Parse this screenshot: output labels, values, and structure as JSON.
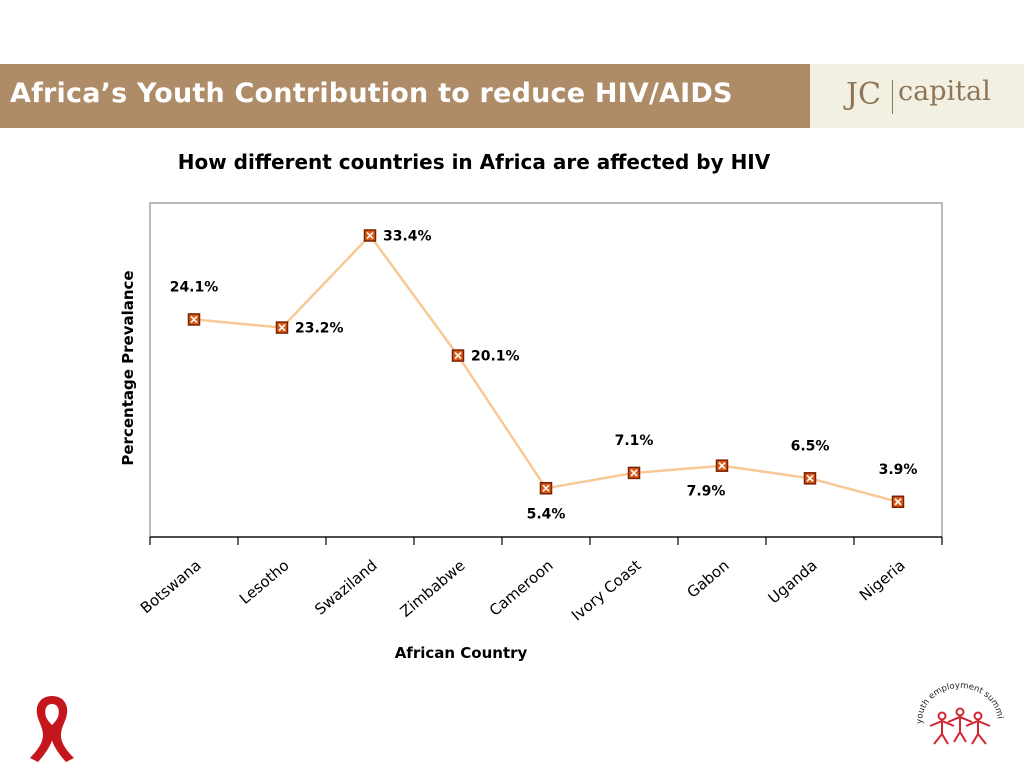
{
  "header": {
    "title": "Africa’s Youth Contribution to reduce HIV/AIDS",
    "logo_left": "JC",
    "logo_right": "capital"
  },
  "summit_logo_text": "youth employment summit",
  "colors": {
    "header_band": "#ad8c67",
    "logo_bg": "#f2efe3",
    "line": "#f8c896",
    "marker_fill": "#d95d1a",
    "marker_border": "#7a2000",
    "ribbon": "#c4161c"
  },
  "icons": [
    "red-ribbon-icon",
    "youth-employment-summit-logo"
  ],
  "chart_data": {
    "type": "line",
    "title": "How different countries in Africa are affected by HIV",
    "xlabel": "African Country",
    "ylabel": "Percentage Prevalance",
    "categories": [
      "Botswana",
      "Lesotho",
      "Swaziland",
      "Zimbabwe",
      "Cameroon",
      "Ivory Coast",
      "Gabon",
      "Uganda",
      "Nigeria"
    ],
    "values": [
      24.1,
      23.2,
      33.4,
      20.1,
      5.4,
      7.1,
      7.9,
      6.5,
      3.9
    ],
    "data_labels": [
      "24.1%",
      "23.2%",
      "33.4%",
      "20.1%",
      "5.4%",
      "7.1%",
      "7.9%",
      "6.5%",
      "3.9%"
    ],
    "ylim": [
      0,
      37
    ],
    "grid": false,
    "legend": "none"
  }
}
